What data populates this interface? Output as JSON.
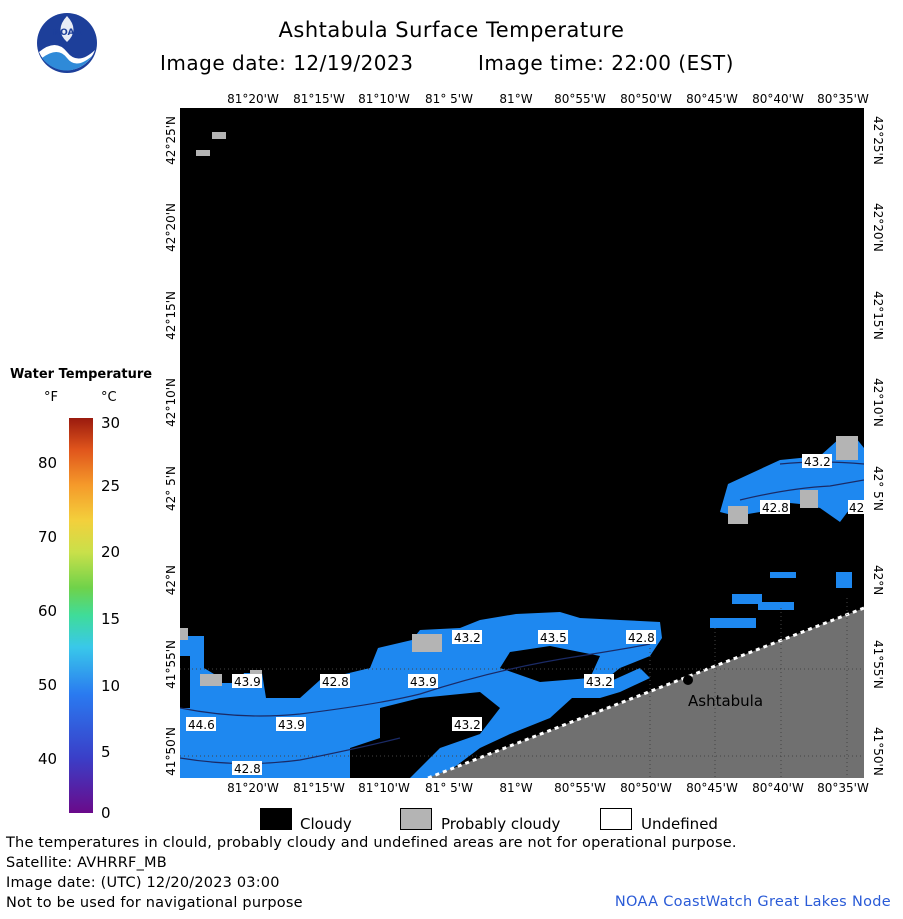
{
  "header": {
    "title": "Ashtabula Surface Temperature",
    "image_date": "Image date: 12/19/2023",
    "image_time": "Image time: 22:00 (EST)",
    "logo_text": "NOAA"
  },
  "axes": {
    "lon_ticks": [
      "81°20'W",
      "81°15'W",
      "81°10'W",
      "81° 5'W",
      "81°W",
      "80°55'W",
      "80°50'W",
      "80°45'W",
      "80°40'W",
      "80°35'W"
    ],
    "lat_ticks": [
      "42°25'N",
      "42°20'N",
      "42°15'N",
      "42°10'N",
      "42° 5'N",
      "42°N",
      "41°55'N",
      "41°50'N"
    ]
  },
  "map": {
    "place_label": "Ashtabula",
    "temperature_labels": [
      "43.2",
      "42.8",
      "42",
      "43.2",
      "43.5",
      "42.8",
      "43.9",
      "42.8",
      "43.9",
      "43.2",
      "44.6",
      "43.9",
      "43.2",
      "42.8"
    ]
  },
  "legend": {
    "title": "Water Temperature",
    "unit_f": "°F",
    "unit_c": "°C",
    "f_ticks": [
      "80",
      "70",
      "60",
      "50",
      "40"
    ],
    "c_ticks": [
      "30",
      "25",
      "20",
      "15",
      "10",
      "5",
      "0"
    ]
  },
  "key": {
    "cloudy": "Cloudy",
    "probably_cloudy": "Probably cloudy",
    "undefined": "Undefined",
    "colors": {
      "cloudy": "#000000",
      "probably_cloudy": "#b4b4b4",
      "undefined": "#ffffff",
      "water": "#1e88f0",
      "land": "#707070"
    }
  },
  "footer": {
    "disclaimer": "The temperatures in clould, probably cloudy and undefined areas are not for operational purpose.",
    "satellite": "Satellite: AVHRRF_MB",
    "utc_date": "Image date: (UTC) 12/20/2023  03:00",
    "nav_warning": "Not to be used for navigational purpose",
    "node": "NOAA CoastWatch Great Lakes Node"
  }
}
